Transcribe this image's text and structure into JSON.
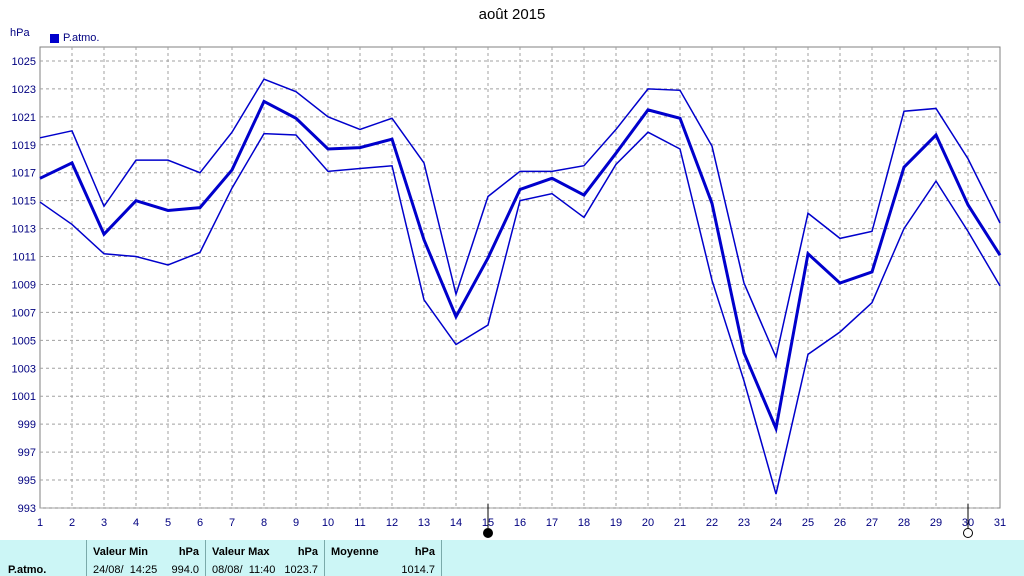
{
  "chart_data": {
    "type": "line",
    "title": "août 2015",
    "ylabel": "hPa",
    "legend": [
      "P.atmo."
    ],
    "legend_position": "top-left",
    "grid": true,
    "ylim": [
      993,
      1026
    ],
    "yticks": [
      993,
      995,
      997,
      999,
      1001,
      1003,
      1005,
      1007,
      1009,
      1011,
      1013,
      1015,
      1017,
      1019,
      1021,
      1023,
      1025
    ],
    "x": [
      1,
      2,
      3,
      4,
      5,
      6,
      7,
      8,
      9,
      10,
      11,
      12,
      13,
      14,
      15,
      16,
      17,
      18,
      19,
      20,
      21,
      22,
      23,
      24,
      25,
      26,
      27,
      28,
      29,
      30,
      31
    ],
    "series": [
      {
        "name": "P.atmo.",
        "role": "max",
        "values": [
          1019.5,
          1020.0,
          1014.6,
          1017.9,
          1017.9,
          1017.0,
          1019.9,
          1023.7,
          1022.8,
          1021.0,
          1020.1,
          1020.9,
          1017.7,
          1008.3,
          1015.3,
          1017.1,
          1017.1,
          1017.5,
          1020.1,
          1023.0,
          1022.9,
          1018.9,
          1009.1,
          1003.8,
          1014.1,
          1012.3,
          1012.8,
          1021.4,
          1021.6,
          1018.0,
          1013.4
        ]
      },
      {
        "name": "P.atmo.",
        "role": "mean",
        "values": [
          1016.6,
          1017.7,
          1012.6,
          1015.0,
          1014.3,
          1014.5,
          1017.2,
          1022.1,
          1020.9,
          1018.7,
          1018.8,
          1019.4,
          1012.2,
          1006.7,
          1010.9,
          1015.8,
          1016.6,
          1015.4,
          1018.4,
          1021.5,
          1020.9,
          1014.8,
          1004.1,
          998.7,
          1011.2,
          1009.1,
          1009.9,
          1017.4,
          1019.7,
          1014.7,
          1011.1
        ]
      },
      {
        "name": "P.atmo.",
        "role": "min",
        "values": [
          1014.9,
          1013.3,
          1011.2,
          1011.0,
          1010.4,
          1011.3,
          1015.9,
          1019.8,
          1019.7,
          1017.1,
          1017.3,
          1017.5,
          1007.9,
          1004.7,
          1006.1,
          1015.0,
          1015.5,
          1013.8,
          1017.6,
          1019.9,
          1018.7,
          1009.3,
          1002.1,
          994.0,
          1004.0,
          1005.6,
          1007.7,
          1013.0,
          1016.4,
          1012.8,
          1008.9
        ]
      }
    ],
    "moon_markers": [
      {
        "x": 15,
        "phase": "new-moon"
      },
      {
        "x": 30,
        "phase": "full-moon"
      }
    ],
    "colors": {
      "line": "#0000cc",
      "grid": "#a0a0a0",
      "axis_text": "#000080",
      "stats_bg": "#ccf6f6"
    }
  },
  "header": {
    "title": "août 2015",
    "unit": "hPa",
    "legend_label": "P.atmo."
  },
  "stats": {
    "row_label": "P.atmo.",
    "min_header": "Valeur Min",
    "min_unit": "hPa",
    "min_date": "24/08/  14:25",
    "min_value": "994.0",
    "max_header": "Valeur Max",
    "max_unit": "hPa",
    "max_date": "08/08/  11:40",
    "max_value": "1023.7",
    "mean_header": "Moyenne",
    "mean_unit": "hPa",
    "mean_value": "1014.7"
  }
}
